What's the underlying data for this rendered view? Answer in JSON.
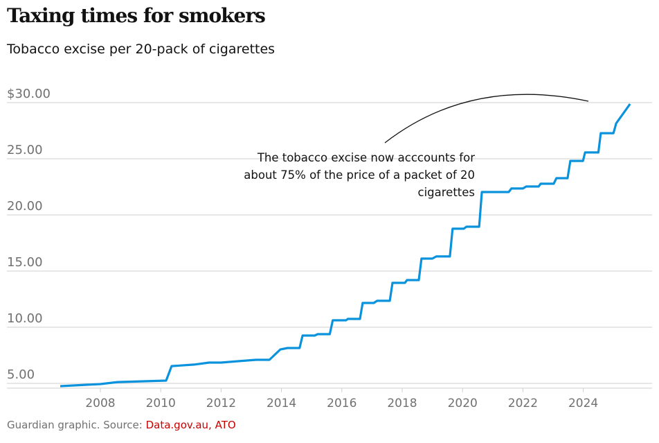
{
  "title": "Taxing times for smokers",
  "subtitle": "Tobacco excise per 20-pack of cigarettes",
  "source": {
    "prefix": "Guardian graphic. Source: ",
    "link": "Data.gov.au, ATO"
  },
  "chart_data": {
    "type": "line",
    "title": "Taxing times for smokers",
    "subtitle": "Tobacco excise per 20-pack of cigarettes",
    "xlabel": "",
    "ylabel": "",
    "xlim": [
      2006.6,
      2025.8
    ],
    "ylim": [
      4.5,
      30
    ],
    "grid": "horizontal",
    "line_color": "#0a93dc",
    "y_ticks": [
      {
        "value": 5,
        "label": "5.00"
      },
      {
        "value": 10,
        "label": "10.00"
      },
      {
        "value": 15,
        "label": "15.00"
      },
      {
        "value": 20,
        "label": "20.00"
      },
      {
        "value": 25,
        "label": "25.00"
      },
      {
        "value": 30,
        "label": "$30.00"
      }
    ],
    "x_ticks": [
      2008,
      2010,
      2012,
      2014,
      2016,
      2018,
      2020,
      2022,
      2024
    ],
    "annotation": {
      "lines": [
        "The tobacco excise now acccounts for",
        "about 75% of the price of a packet of 20",
        "cigarettes"
      ]
    },
    "series": [
      {
        "points": [
          [
            2006.67,
            4.75
          ],
          [
            2008.0,
            4.94
          ],
          [
            2008.57,
            5.12
          ],
          [
            2010.18,
            5.25
          ],
          [
            2010.36,
            6.54
          ],
          [
            2011.1,
            6.67
          ],
          [
            2011.6,
            6.85
          ],
          [
            2012.0,
            6.85
          ],
          [
            2012.6,
            6.98
          ],
          [
            2013.16,
            7.1
          ],
          [
            2013.6,
            7.1
          ],
          [
            2013.96,
            8.02
          ],
          [
            2014.2,
            8.15
          ],
          [
            2014.6,
            8.15
          ],
          [
            2014.7,
            9.26
          ],
          [
            2015.1,
            9.26
          ],
          [
            2015.2,
            9.38
          ],
          [
            2015.6,
            9.38
          ],
          [
            2015.7,
            10.62
          ],
          [
            2016.14,
            10.62
          ],
          [
            2016.2,
            10.74
          ],
          [
            2016.6,
            10.74
          ],
          [
            2016.69,
            12.16
          ],
          [
            2017.06,
            12.16
          ],
          [
            2017.17,
            12.35
          ],
          [
            2017.59,
            12.35
          ],
          [
            2017.68,
            13.95
          ],
          [
            2018.09,
            13.95
          ],
          [
            2018.16,
            14.2
          ],
          [
            2018.55,
            14.2
          ],
          [
            2018.64,
            16.11
          ],
          [
            2019.0,
            16.11
          ],
          [
            2019.13,
            16.3
          ],
          [
            2019.58,
            16.3
          ],
          [
            2019.67,
            18.77
          ],
          [
            2020.04,
            18.77
          ],
          [
            2020.13,
            18.95
          ],
          [
            2020.55,
            18.95
          ],
          [
            2020.64,
            22.04
          ],
          [
            2021.53,
            22.04
          ],
          [
            2021.62,
            22.35
          ],
          [
            2022.0,
            22.35
          ],
          [
            2022.11,
            22.53
          ],
          [
            2022.52,
            22.53
          ],
          [
            2022.59,
            22.78
          ],
          [
            2023.02,
            22.78
          ],
          [
            2023.11,
            23.27
          ],
          [
            2023.48,
            23.27
          ],
          [
            2023.57,
            24.81
          ],
          [
            2023.99,
            24.81
          ],
          [
            2024.06,
            25.56
          ],
          [
            2024.5,
            25.56
          ],
          [
            2024.58,
            27.28
          ],
          [
            2025.0,
            27.28
          ],
          [
            2025.09,
            28.15
          ],
          [
            2025.55,
            29.88
          ]
        ]
      }
    ]
  }
}
